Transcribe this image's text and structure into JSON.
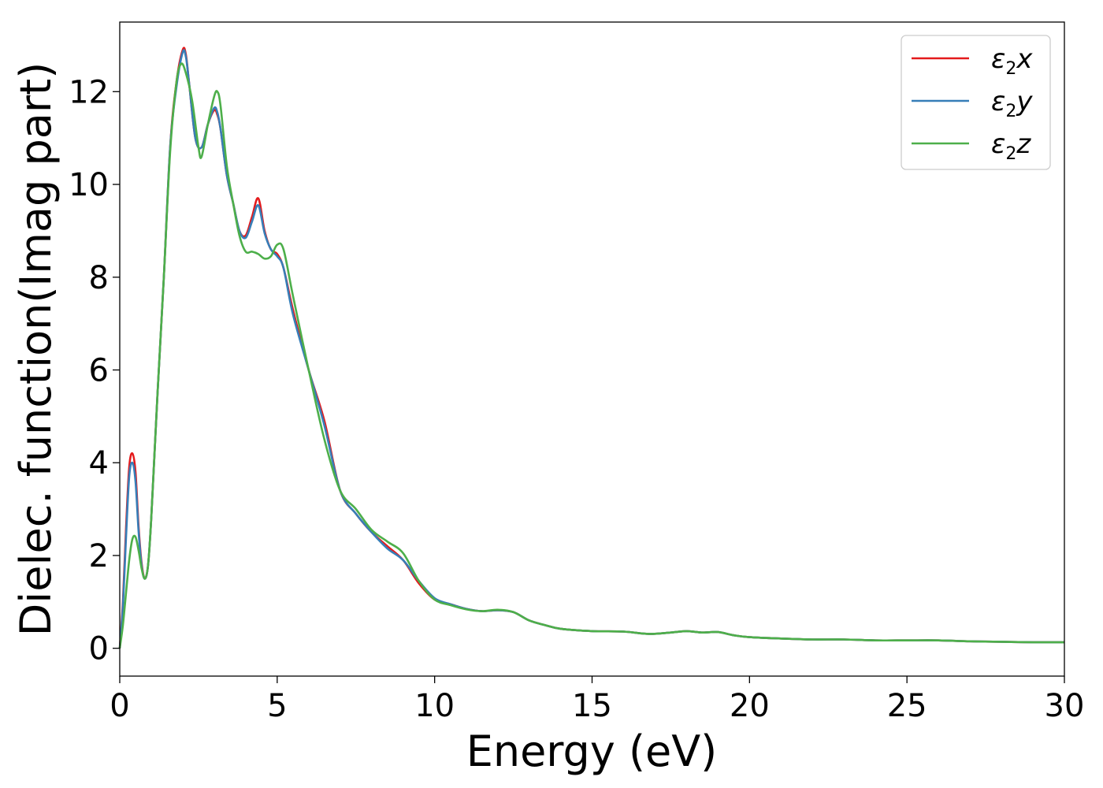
{
  "chart_data": {
    "type": "line",
    "xlabel": "Energy (eV)",
    "ylabel": "Dielec. function(Imag part)",
    "xlim": [
      0,
      30
    ],
    "ylim": [
      -0.6,
      13.5
    ],
    "xticks": [
      0,
      5,
      10,
      15,
      20,
      25,
      30
    ],
    "yticks": [
      0,
      2,
      4,
      6,
      8,
      10,
      12
    ],
    "grid": false,
    "legend_position": "top-right",
    "series": [
      {
        "name": "ε2x",
        "legend": {
          "base": "ε",
          "sub": "2",
          "var": "x"
        },
        "color": "#e41a1c",
        "x": [
          0,
          0.1,
          0.2,
          0.3,
          0.4,
          0.5,
          0.6,
          0.7,
          0.8,
          0.9,
          1.0,
          1.2,
          1.4,
          1.6,
          1.8,
          2.0,
          2.1,
          2.2,
          2.4,
          2.6,
          2.8,
          3.0,
          3.1,
          3.2,
          3.4,
          3.6,
          3.8,
          4.0,
          4.2,
          4.4,
          4.6,
          4.8,
          5.0,
          5.2,
          5.5,
          6.0,
          6.5,
          7.0,
          7.5,
          8.0,
          8.5,
          9.0,
          9.5,
          10.0,
          10.5,
          11.0,
          11.5,
          12.0,
          12.5,
          13.0,
          13.5,
          14.0,
          15.0,
          16.0,
          16.8,
          17.5,
          18.0,
          18.5,
          19.0,
          19.5,
          20.0,
          21.0,
          22.0,
          23.0,
          24.0,
          25.0,
          26.0,
          27.0,
          28.0,
          29.0,
          30.0
        ],
        "values": [
          0.0,
          1.0,
          2.6,
          3.9,
          4.2,
          3.8,
          2.6,
          1.8,
          1.5,
          1.8,
          2.8,
          5.5,
          8.0,
          10.8,
          12.2,
          12.9,
          12.8,
          12.2,
          11.0,
          10.8,
          11.3,
          11.6,
          11.5,
          11.2,
          10.2,
          9.6,
          9.0,
          8.9,
          9.3,
          9.7,
          9.0,
          8.6,
          8.5,
          8.2,
          7.3,
          6.0,
          4.9,
          3.4,
          2.9,
          2.5,
          2.2,
          1.9,
          1.4,
          1.05,
          0.95,
          0.85,
          0.8,
          0.82,
          0.78,
          0.6,
          0.5,
          0.42,
          0.37,
          0.36,
          0.31,
          0.34,
          0.37,
          0.34,
          0.35,
          0.28,
          0.24,
          0.21,
          0.19,
          0.19,
          0.17,
          0.17,
          0.17,
          0.15,
          0.14,
          0.13,
          0.13
        ]
      },
      {
        "name": "ε2y",
        "legend": {
          "base": "ε",
          "sub": "2",
          "var": "y"
        },
        "color": "#377eb8",
        "x": [
          0,
          0.1,
          0.2,
          0.3,
          0.4,
          0.5,
          0.6,
          0.7,
          0.8,
          0.9,
          1.0,
          1.2,
          1.4,
          1.6,
          1.8,
          2.0,
          2.1,
          2.2,
          2.4,
          2.6,
          2.8,
          3.0,
          3.1,
          3.2,
          3.4,
          3.6,
          3.8,
          4.0,
          4.2,
          4.4,
          4.6,
          4.8,
          5.0,
          5.2,
          5.5,
          6.0,
          6.5,
          7.0,
          7.5,
          8.0,
          8.5,
          9.0,
          9.5,
          10.0,
          10.5,
          11.0,
          11.5,
          12.0,
          12.5,
          13.0,
          13.5,
          14.0,
          15.0,
          16.0,
          16.8,
          17.5,
          18.0,
          18.5,
          19.0,
          19.5,
          20.0,
          21.0,
          22.0,
          23.0,
          24.0,
          25.0,
          26.0,
          27.0,
          28.0,
          29.0,
          30.0
        ],
        "values": [
          0.0,
          0.9,
          2.4,
          3.7,
          4.0,
          3.6,
          2.5,
          1.75,
          1.5,
          1.8,
          2.8,
          5.5,
          8.0,
          10.8,
          12.1,
          12.85,
          12.75,
          12.2,
          11.0,
          10.8,
          11.3,
          11.65,
          11.55,
          11.2,
          10.2,
          9.6,
          9.0,
          8.85,
          9.2,
          9.55,
          8.95,
          8.6,
          8.45,
          8.2,
          7.2,
          6.0,
          4.8,
          3.4,
          2.9,
          2.5,
          2.15,
          1.9,
          1.45,
          1.08,
          0.95,
          0.85,
          0.8,
          0.82,
          0.78,
          0.6,
          0.5,
          0.42,
          0.37,
          0.36,
          0.31,
          0.34,
          0.37,
          0.34,
          0.35,
          0.28,
          0.24,
          0.21,
          0.19,
          0.19,
          0.17,
          0.17,
          0.17,
          0.15,
          0.14,
          0.13,
          0.13
        ]
      },
      {
        "name": "ε2z",
        "legend": {
          "base": "ε",
          "sub": "2",
          "var": "z"
        },
        "color": "#4daf4a",
        "x": [
          0,
          0.1,
          0.2,
          0.3,
          0.4,
          0.5,
          0.6,
          0.7,
          0.8,
          0.9,
          1.0,
          1.2,
          1.4,
          1.6,
          1.8,
          1.95,
          2.1,
          2.3,
          2.5,
          2.6,
          2.8,
          3.0,
          3.1,
          3.2,
          3.4,
          3.6,
          3.8,
          4.0,
          4.2,
          4.4,
          4.6,
          4.8,
          5.0,
          5.2,
          5.5,
          6.0,
          6.5,
          7.0,
          7.5,
          8.0,
          8.5,
          9.0,
          9.5,
          10.0,
          10.5,
          11.0,
          11.5,
          12.0,
          12.5,
          13.0,
          13.5,
          14.0,
          15.0,
          16.0,
          16.8,
          17.5,
          18.0,
          18.5,
          19.0,
          19.5,
          20.0,
          21.0,
          22.0,
          23.0,
          24.0,
          25.0,
          26.0,
          27.0,
          28.0,
          29.0,
          30.0
        ],
        "values": [
          0.0,
          0.5,
          1.2,
          1.9,
          2.35,
          2.4,
          2.1,
          1.7,
          1.5,
          1.8,
          2.8,
          5.5,
          8.0,
          10.7,
          12.2,
          12.6,
          12.4,
          11.8,
          10.8,
          10.6,
          11.3,
          11.9,
          12.0,
          11.7,
          10.4,
          9.6,
          8.9,
          8.55,
          8.55,
          8.5,
          8.4,
          8.45,
          8.7,
          8.6,
          7.6,
          6.0,
          4.5,
          3.4,
          3.0,
          2.55,
          2.3,
          2.05,
          1.45,
          1.05,
          0.93,
          0.84,
          0.8,
          0.83,
          0.78,
          0.6,
          0.5,
          0.42,
          0.37,
          0.36,
          0.31,
          0.34,
          0.37,
          0.34,
          0.35,
          0.28,
          0.24,
          0.21,
          0.19,
          0.19,
          0.17,
          0.17,
          0.17,
          0.15,
          0.14,
          0.13,
          0.13
        ]
      }
    ]
  }
}
